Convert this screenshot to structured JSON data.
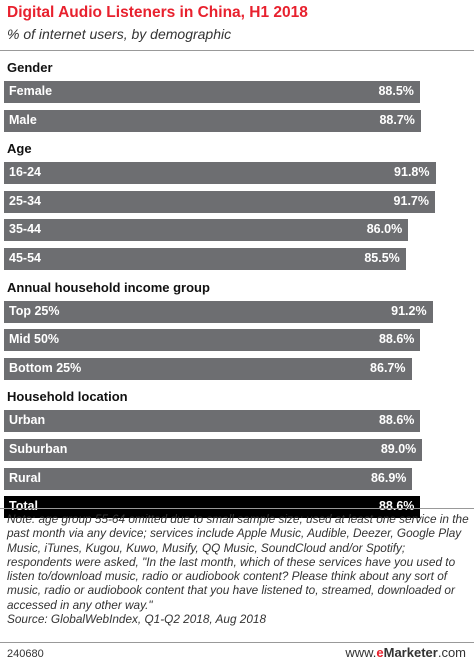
{
  "title": "Digital Audio Listeners in China, H1 2018",
  "subtitle": "% of internet users, by demographic",
  "chart_data": {
    "type": "bar",
    "orientation": "horizontal",
    "title": "Digital Audio Listeners in China, H1 2018",
    "subtitle": "% of internet users, by demographic",
    "xlim": [
      0,
      100
    ],
    "grid": false,
    "groups": [
      {
        "name": "Gender",
        "items": [
          {
            "label": "Female",
            "value": 88.5,
            "display": "88.5%"
          },
          {
            "label": "Male",
            "value": 88.7,
            "display": "88.7%"
          }
        ]
      },
      {
        "name": "Age",
        "items": [
          {
            "label": "16-24",
            "value": 91.8,
            "display": "91.8%"
          },
          {
            "label": "25-34",
            "value": 91.7,
            "display": "91.7%"
          },
          {
            "label": "35-44",
            "value": 86.0,
            "display": "86.0%"
          },
          {
            "label": "45-54",
            "value": 85.5,
            "display": "85.5%"
          }
        ]
      },
      {
        "name": "Annual household income group",
        "items": [
          {
            "label": "Top 25%",
            "value": 91.2,
            "display": "91.2%"
          },
          {
            "label": "Mid 50%",
            "value": 88.6,
            "display": "88.6%"
          },
          {
            "label": "Bottom 25%",
            "value": 86.7,
            "display": "86.7%"
          }
        ]
      },
      {
        "name": "Household location",
        "items": [
          {
            "label": "Urban",
            "value": 88.6,
            "display": "88.6%"
          },
          {
            "label": "Suburban",
            "value": 89.0,
            "display": "89.0%"
          },
          {
            "label": "Rural",
            "value": 86.9,
            "display": "86.9%"
          }
        ]
      }
    ],
    "total": {
      "label": "Total",
      "value": 88.6,
      "display": "88.6%"
    },
    "colors": {
      "bar": "#6d6e71",
      "total": "#000000",
      "title": "#e8212e"
    }
  },
  "note": "Note: age group 55-64 omitted due to small sample size; used at least one service in the past month via any device; services include Apple Music, Audible, Deezer, Google Play Music, iTunes, Kugou, Kuwo, Musify, QQ Music, SoundCloud and/or Spotify; respondents were asked, \"In the last month, which of these services have you used to listen to/download music, radio or audiobook content? Please think about any sort of music, radio or audiobook content that you have listened to, streamed, downloaded or accessed in any other way.\"",
  "source": "Source: GlobalWebIndex, Q1-Q2 2018, Aug 2018",
  "footer": {
    "chart_id": "240680",
    "brand_prefix": "www.",
    "brand_e": "e",
    "brand_rest": "Marketer",
    "brand_suffix": ".com"
  }
}
